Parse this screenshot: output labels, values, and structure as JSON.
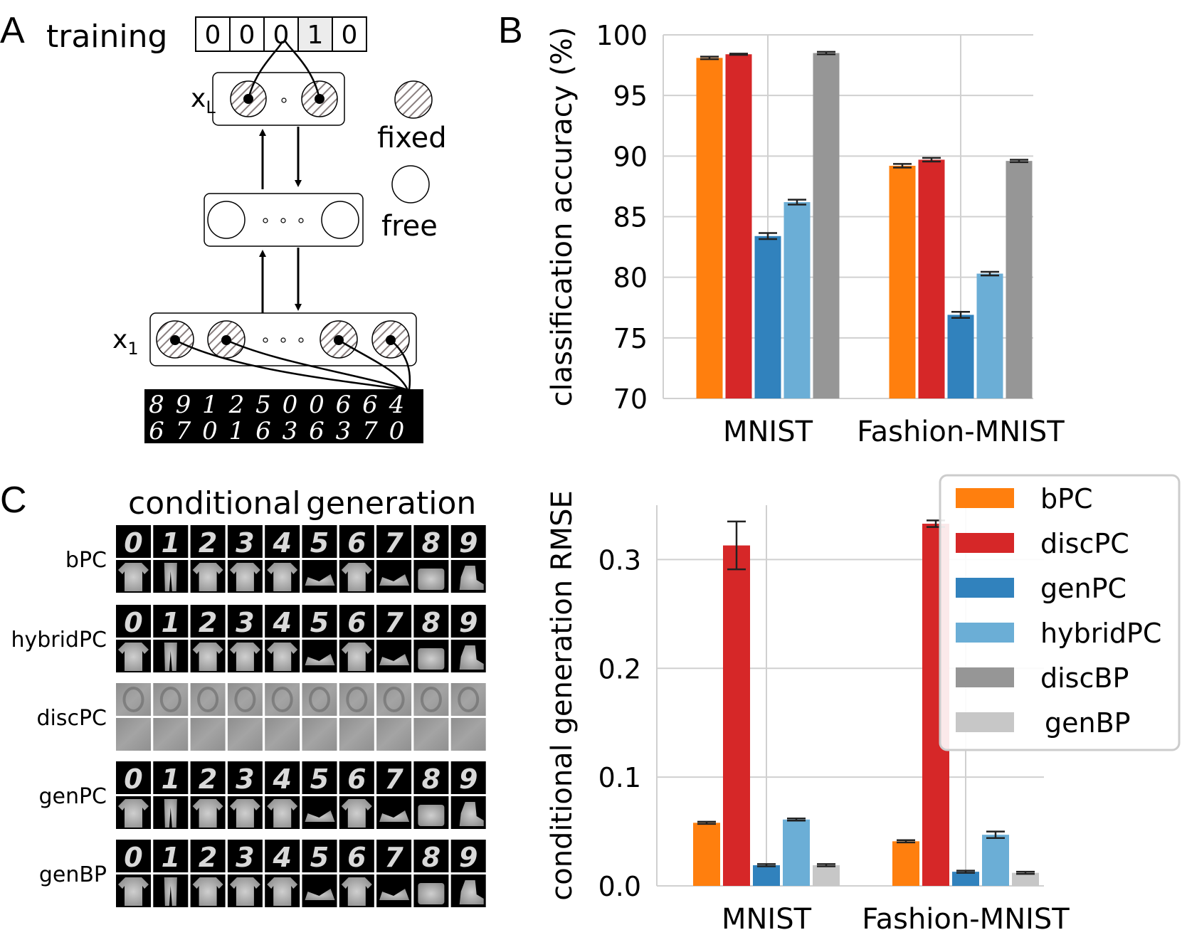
{
  "panel_a": {
    "letter": "A",
    "training_label": "training",
    "onehot": [
      "0",
      "0",
      "0",
      "1",
      "0"
    ],
    "onehot_active_index": 3,
    "layer_top_label": "x",
    "layer_top_sub": "L",
    "layer_bottom_label": "x",
    "layer_bottom_sub": "1",
    "legend_fixed": "fixed",
    "legend_free": "free",
    "mnist_row1": [
      "8",
      "9",
      "1",
      "2",
      "5",
      "0",
      "0",
      "6",
      "6",
      "4"
    ],
    "mnist_row2": [
      "6",
      "7",
      "0",
      "1",
      "6",
      "3",
      "6",
      "3",
      "7",
      "0"
    ]
  },
  "panel_b": {
    "letter": "B"
  },
  "panel_c": {
    "letter": "C",
    "title_part1": "conditional",
    "title_part2": "generation",
    "row_labels": [
      "bPC",
      "hybridPC",
      "discPC",
      "genPC",
      "genBP"
    ],
    "digits": [
      "0",
      "1",
      "2",
      "3",
      "4",
      "5",
      "6",
      "7",
      "8",
      "9"
    ]
  },
  "colors": {
    "bPC": "#ff7f0e",
    "discPC": "#d62728",
    "genPC": "#3182bd",
    "hybridPC": "#6baed6",
    "discBP": "#969696",
    "genBP": "#c7c7c7"
  },
  "chart_data": [
    {
      "type": "bar",
      "ylabel": "classification accuracy (%)",
      "xlabel": "",
      "categories": [
        "MNIST",
        "Fashion-MNIST"
      ],
      "ylim": [
        70,
        100
      ],
      "yticks": [
        70,
        75,
        80,
        85,
        90,
        95,
        100
      ],
      "grid": true,
      "series": [
        {
          "name": "bPC",
          "values": [
            98.1,
            89.2
          ],
          "errors": [
            0.1,
            0.15
          ]
        },
        {
          "name": "discPC",
          "values": [
            98.4,
            89.7
          ],
          "errors": [
            0.05,
            0.15
          ]
        },
        {
          "name": "genPC",
          "values": [
            83.4,
            76.9
          ],
          "errors": [
            0.25,
            0.25
          ]
        },
        {
          "name": "hybridPC",
          "values": [
            86.2,
            80.3
          ],
          "errors": [
            0.2,
            0.15
          ]
        },
        {
          "name": "discBP",
          "values": [
            98.5,
            89.6
          ],
          "errors": [
            0.1,
            0.1
          ]
        }
      ]
    },
    {
      "type": "bar",
      "ylabel": "conditional generation RMSE",
      "xlabel": "",
      "categories": [
        "MNIST",
        "Fashion-MNIST"
      ],
      "ylim": [
        0.0,
        0.35
      ],
      "yticks": [
        0.0,
        0.1,
        0.2,
        0.3
      ],
      "grid": true,
      "legend_position": "top-right",
      "series": [
        {
          "name": "bPC",
          "values": [
            0.058,
            0.041
          ],
          "errors": [
            0.001,
            0.001
          ]
        },
        {
          "name": "discPC",
          "values": [
            0.313,
            0.333
          ],
          "errors": [
            0.022,
            0.003
          ]
        },
        {
          "name": "genPC",
          "values": [
            0.019,
            0.013
          ],
          "errors": [
            0.001,
            0.001
          ]
        },
        {
          "name": "hybridPC",
          "values": [
            0.061,
            0.047
          ],
          "errors": [
            0.001,
            0.003
          ]
        },
        {
          "name": "genBP",
          "values": [
            0.019,
            0.012
          ],
          "errors": [
            0.001,
            0.001
          ]
        }
      ],
      "legend": [
        "bPC",
        "discPC",
        "genPC",
        "hybridPC",
        "discBP",
        "genBP"
      ]
    }
  ]
}
